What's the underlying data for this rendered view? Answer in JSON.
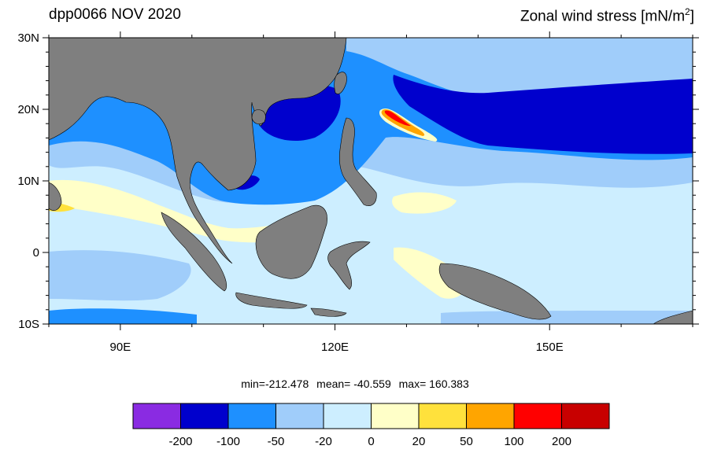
{
  "title_left": "dpp0066 NOV 2020",
  "title_right": {
    "text": "Zonal wind stress [mN/m",
    "superscript": "2",
    "close": "]"
  },
  "lat_labels": [
    "30N",
    "20N",
    "10N",
    "0",
    "10S"
  ],
  "lon_labels": [
    "90E",
    "120E",
    "150E"
  ],
  "stats": {
    "min": "min=-212.478",
    "mean": "mean= -40.559",
    "max": "max= 160.383"
  },
  "colorbar": {
    "colors": [
      "#8a2be2",
      "#0000cd",
      "#1e90ff",
      "#a0cdfa",
      "#cdeeff",
      "#ffffc8",
      "#ffe13c",
      "#ffa500",
      "#ff0000",
      "#c80000"
    ],
    "labels": [
      "-200",
      "-100",
      "-50",
      "-20",
      "0",
      "20",
      "50",
      "100",
      "200"
    ]
  },
  "map": {
    "land_color": "#7f7f7f",
    "lat_range": [
      "10S",
      "30N"
    ],
    "lon_range": [
      "80E",
      "170E"
    ]
  }
}
